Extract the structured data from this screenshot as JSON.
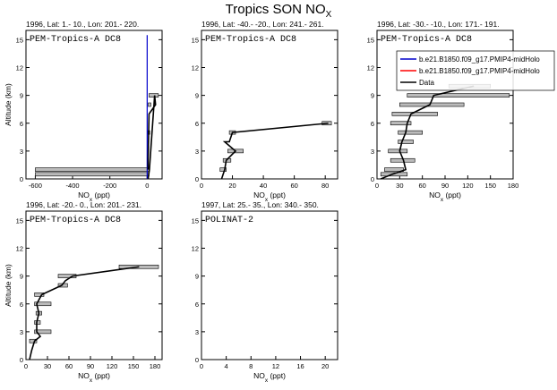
{
  "title": {
    "main": "Tropics SON NO",
    "sub": "X"
  },
  "colors": {
    "model_blue": "#0000cc",
    "model_red": "#ff0000",
    "data": "#000000",
    "box_fill": "#bbbbbb"
  },
  "legend": {
    "entries": [
      "b.e21.B1850.f09_g17.PMIP4-midHolo",
      "b.e21.B1850.f09_g17.PMIP4-midHolo",
      "Data"
    ]
  },
  "chart_data": [
    {
      "type": "line",
      "header": "1996, Lat: 1.- 10., Lon: 201.- 220.",
      "campaign": "PEM-Tropics-A DC8",
      "xlabel": "NO",
      "xlabel_sub": "x",
      "xlabel_unit": " (ppt)",
      "ylabel": "Altitude (km)",
      "xlim": [
        -650,
        80
      ],
      "ylim": [
        0,
        16
      ],
      "xticks": [
        -600,
        -400,
        -200,
        0
      ],
      "yticks": [
        0,
        3,
        6,
        9,
        12,
        15
      ],
      "model_blue": {
        "x": [
          0,
          0
        ],
        "y": [
          0,
          15.5
        ]
      },
      "data_line": {
        "x": [
          5,
          12,
          40,
          45,
          10,
          8,
          7,
          6,
          5,
          5
        ],
        "y": [
          0,
          1,
          9,
          8,
          7,
          5,
          4,
          3,
          2,
          1
        ]
      },
      "boxes": [
        {
          "y": 9,
          "x1": 10,
          "x2": 60
        },
        {
          "y": 8,
          "x1": 6,
          "x2": 20
        },
        {
          "y": 5,
          "x1": 4,
          "x2": 14
        },
        {
          "y": 1,
          "x1": -600,
          "x2": 12
        },
        {
          "y": 0.5,
          "x1": -600,
          "x2": 10
        }
      ]
    },
    {
      "type": "line",
      "header": "1996, Lat: -40.- -20., Lon: 241.- 261.",
      "campaign": "PEM-Tropics-A DC8",
      "xlabel": "NO",
      "xlabel_sub": "x",
      "xlabel_unit": " (ppt)",
      "xlim": [
        0,
        88
      ],
      "ylim": [
        0,
        16
      ],
      "xticks": [
        0,
        20,
        40,
        60,
        80
      ],
      "yticks": [
        0,
        3,
        6,
        9,
        12,
        15
      ],
      "data_line": {
        "x": [
          82,
          20,
          18,
          15,
          22,
          16,
          15,
          13
        ],
        "y": [
          6,
          5,
          4,
          4,
          3,
          2,
          1,
          0
        ]
      },
      "boxes": [
        {
          "y": 6,
          "x1": 78,
          "x2": 84
        },
        {
          "y": 5,
          "x1": 18,
          "x2": 22
        },
        {
          "y": 3,
          "x1": 17,
          "x2": 27
        },
        {
          "y": 2,
          "x1": 14,
          "x2": 19
        },
        {
          "y": 1,
          "x1": 12,
          "x2": 16
        }
      ]
    },
    {
      "type": "line",
      "header": "1996, Lat: -30.- -10., Lon: 171.- 191.",
      "campaign": "PEM-Tropics-A DC8",
      "xlabel": "NO",
      "xlabel_sub": "x",
      "xlabel_unit": " (ppt)",
      "xlim": [
        0,
        180
      ],
      "ylim": [
        0,
        16
      ],
      "xticks": [
        0,
        30,
        60,
        90,
        120,
        150,
        180
      ],
      "yticks": [
        0,
        3,
        6,
        9,
        12,
        15
      ],
      "data_line": {
        "x": [
          128,
          75,
          70,
          45,
          40,
          38,
          33,
          30,
          35,
          38,
          20,
          5
        ],
        "y": [
          10,
          9,
          8,
          7,
          6,
          5,
          4,
          3,
          2,
          1,
          0.5,
          0
        ]
      },
      "boxes": [
        {
          "y": 10,
          "x1": 95,
          "x2": 150
        },
        {
          "y": 9,
          "x1": 40,
          "x2": 175
        },
        {
          "y": 8,
          "x1": 30,
          "x2": 115
        },
        {
          "y": 7,
          "x1": 20,
          "x2": 80
        },
        {
          "y": 6,
          "x1": 18,
          "x2": 45
        },
        {
          "y": 5,
          "x1": 28,
          "x2": 60
        },
        {
          "y": 4,
          "x1": 28,
          "x2": 48
        },
        {
          "y": 3,
          "x1": 15,
          "x2": 40
        },
        {
          "y": 2,
          "x1": 18,
          "x2": 50
        },
        {
          "y": 1,
          "x1": 10,
          "x2": 35
        },
        {
          "y": 0.5,
          "x1": 5,
          "x2": 40
        }
      ]
    },
    {
      "type": "line",
      "header": "1996, Lat: -20.- 0., Lon: 201.- 231.",
      "campaign": "PEM-Tropics-A DC8",
      "xlabel": "NO",
      "xlabel_sub": "x",
      "xlabel_unit": " (ppt)",
      "ylabel": "Altitude (km)",
      "xlim": [
        0,
        190
      ],
      "ylim": [
        0,
        16
      ],
      "xticks": [
        0,
        30,
        60,
        90,
        120,
        150,
        180
      ],
      "yticks": [
        0,
        3,
        6,
        9,
        12,
        15
      ],
      "data_line": {
        "x": [
          158,
          65,
          55,
          50,
          22,
          15,
          18,
          15,
          15,
          20,
          12,
          8,
          5
        ],
        "y": [
          10,
          9,
          8.5,
          8,
          7,
          6,
          5,
          4,
          3,
          2.5,
          2,
          1,
          0
        ]
      },
      "boxes": [
        {
          "y": 10,
          "x1": 130,
          "x2": 185
        },
        {
          "y": 9,
          "x1": 45,
          "x2": 70
        },
        {
          "y": 8,
          "x1": 45,
          "x2": 58
        },
        {
          "y": 7,
          "x1": 12,
          "x2": 25
        },
        {
          "y": 6,
          "x1": 12,
          "x2": 35
        },
        {
          "y": 5,
          "x1": 14,
          "x2": 22
        },
        {
          "y": 4,
          "x1": 12,
          "x2": 20
        },
        {
          "y": 3,
          "x1": 12,
          "x2": 35
        },
        {
          "y": 2,
          "x1": 5,
          "x2": 15
        }
      ]
    },
    {
      "type": "line",
      "header": "1997, Lat: 25.- 35., Lon: 340.- 350.",
      "campaign": "POLINAT-2",
      "xlabel": "NO",
      "xlabel_sub": "x",
      "xlabel_unit": " (ppt)",
      "xlim": [
        0,
        22
      ],
      "ylim": [
        0,
        16
      ],
      "xticks": [
        0,
        4,
        8,
        12,
        16,
        20
      ],
      "yticks": [
        0,
        3,
        6,
        9,
        12,
        15
      ],
      "data_line": {
        "x": [],
        "y": []
      },
      "boxes": []
    }
  ]
}
